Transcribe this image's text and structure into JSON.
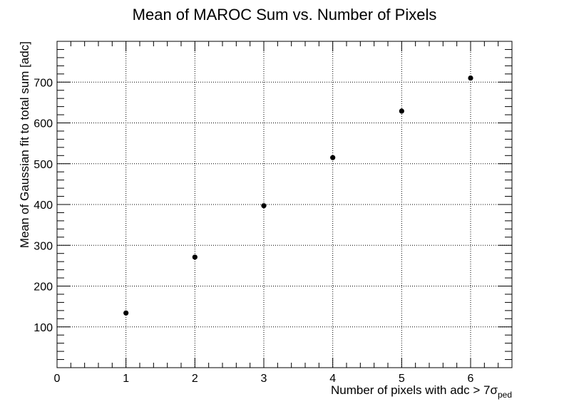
{
  "chart_data": {
    "type": "scatter",
    "title": "Mean of MAROC Sum vs. Number of Pixels",
    "xlabel": "Number of pixels with adc > 7",
    "xlabel_symbol": "σ",
    "xlabel_subscript": "ped",
    "ylabel": "Mean of Gaussian fit to total sum [adc]",
    "xlim": [
      0,
      6.6
    ],
    "ylim": [
      0,
      800
    ],
    "grid": true,
    "x_ticks": [
      0,
      1,
      2,
      3,
      4,
      5,
      6
    ],
    "y_ticks": [
      100,
      200,
      300,
      400,
      500,
      600,
      700
    ],
    "marker_color": "#000000",
    "series": [
      {
        "x": [
          1,
          2,
          3,
          4,
          5,
          6
        ],
        "y": [
          134,
          271,
          397,
          515,
          629,
          710
        ]
      }
    ]
  }
}
